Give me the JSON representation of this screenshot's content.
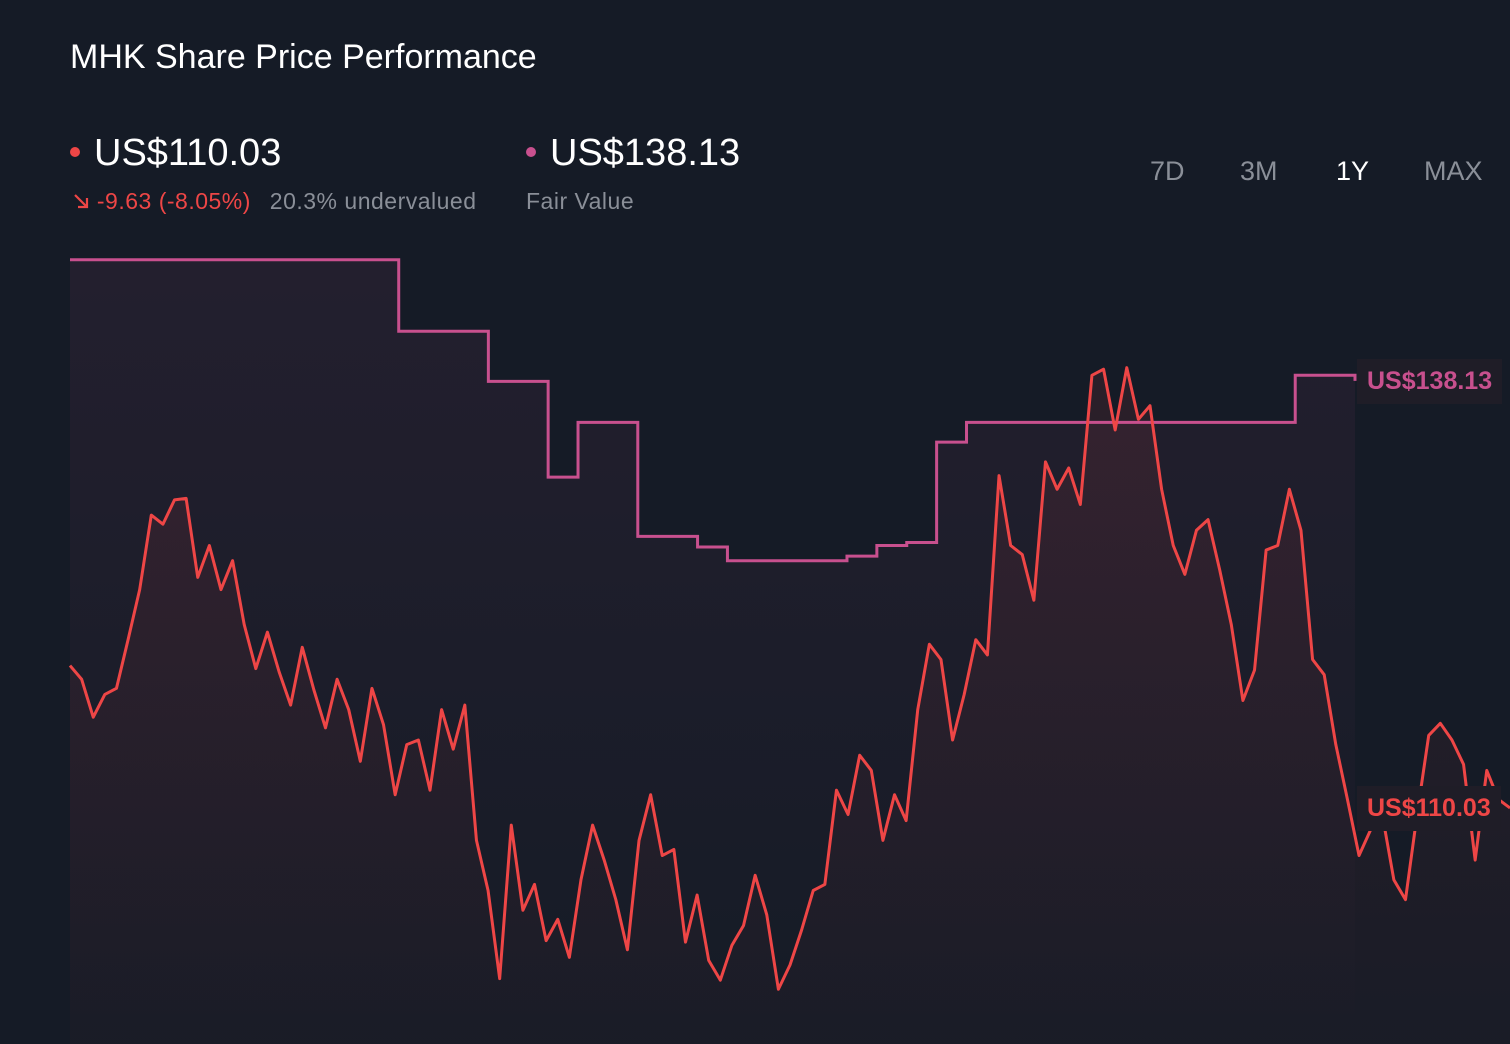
{
  "chart_data": {
    "type": "line",
    "title": "MHK Share Price Performance",
    "price": {
      "value": 110.03,
      "label": "US$110.03",
      "change": "-9.63 (-8.05%)",
      "status": "20.3% undervalued"
    },
    "fair_value": {
      "value": 138.13,
      "label": "US$138.13"
    },
    "ranges": [
      "7D",
      "3M",
      "1Y",
      "MAX"
    ],
    "active_range": "1Y",
    "ylim": [
      94.5,
      147.4
    ],
    "series": [
      {
        "color": "#ee4646",
        "values": [
          119.4,
          118.5,
          116.0,
          117.5,
          117.9,
          121.1,
          124.4,
          129.3,
          128.7,
          130.3,
          130.4,
          125.2,
          127.3,
          124.4,
          126.3,
          122.1,
          119.2,
          121.6,
          119.0,
          116.8,
          120.6,
          117.8,
          115.3,
          118.5,
          116.5,
          113.1,
          117.9,
          115.5,
          110.9,
          114.2,
          114.5,
          111.2,
          116.5,
          113.9,
          116.8,
          107.9,
          104.6,
          98.8,
          108.9,
          103.3,
          105.0,
          101.3,
          102.7,
          100.2,
          105.3,
          108.9,
          106.6,
          104.0,
          100.7,
          107.9,
          110.9,
          106.9,
          107.3,
          101.2,
          104.3,
          100.0,
          98.7,
          101.0,
          102.3,
          105.6,
          103.0,
          98.1,
          99.7,
          102.0,
          104.6,
          105.0,
          111.2,
          109.6,
          113.5,
          112.5,
          107.9,
          110.9,
          109.2,
          116.5,
          120.8,
          119.8,
          114.5,
          117.5,
          121.1,
          120.1,
          131.9,
          127.3,
          126.7,
          123.7,
          132.8,
          131.0,
          132.4,
          130.0,
          138.5,
          138.9,
          134.9,
          139.0,
          135.6,
          136.5,
          131.0,
          127.3,
          125.4,
          128.3,
          129.0,
          125.7,
          122.1,
          117.1,
          119.1,
          127.0,
          127.3,
          131.0,
          128.3,
          119.8,
          118.8,
          114.2,
          110.6,
          106.9,
          108.6,
          109.6,
          105.3,
          104.0,
          109.6,
          114.8,
          115.6,
          114.5,
          112.9,
          106.6,
          112.5,
          110.6,
          110.03
        ]
      },
      {
        "name": "Fair Value",
        "color": "#c8508e",
        "values": [
          146.1,
          146.1,
          146.1,
          146.1,
          146.1,
          146.1,
          146.1,
          146.1,
          146.1,
          146.1,
          146.1,
          141.4,
          141.4,
          141.4,
          138.1,
          138.1,
          131.8,
          135.4,
          135.4,
          127.9,
          127.9,
          127.2,
          126.3,
          126.3,
          126.3,
          126.3,
          126.6,
          127.3,
          127.5,
          134.1,
          135.4,
          135.4,
          135.4,
          135.4,
          135.4,
          135.4,
          135.4,
          135.4,
          135.4,
          135.4,
          135.4,
          138.5,
          138.5,
          138.13
        ]
      }
    ]
  }
}
